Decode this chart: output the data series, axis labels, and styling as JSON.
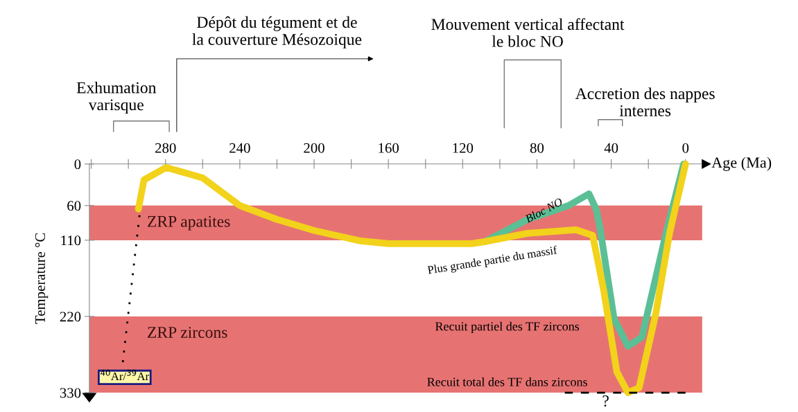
{
  "chart_data": {
    "type": "line",
    "xlabel": "Age (Ma)",
    "ylabel": "Temperature °C",
    "xlim": [
      321,
      -9
    ],
    "ylim": [
      330,
      0
    ],
    "xticks": [
      {
        "value": 320,
        "label": null
      },
      {
        "value": 300,
        "label": null
      },
      280,
      {
        "value": 260,
        "label": null
      },
      240,
      {
        "value": 220,
        "label": null
      },
      200,
      {
        "value": 180,
        "label": null
      },
      160,
      {
        "value": 140,
        "label": null
      },
      120,
      {
        "value": 100,
        "label": null
      },
      80,
      {
        "value": 60,
        "label": null
      },
      40,
      {
        "value": 20,
        "label": null
      },
      0
    ],
    "yticks": [
      0,
      60,
      110,
      220,
      330
    ],
    "grid": false,
    "legend": false,
    "marker": "none",
    "series": [
      {
        "name": "Plus grande partie du massif",
        "color": "#f2d21a",
        "line_style": "solid",
        "x": [
          294.6,
          291.6,
          279.6,
          260,
          240,
          220,
          200,
          175,
          160,
          115,
          108,
          85,
          59,
          50,
          44,
          37,
          31,
          25,
          16,
          8.6,
          0
        ],
        "values": [
          65,
          23,
          5,
          20,
          60,
          80,
          96,
          111,
          115,
          115,
          112,
          100,
          95,
          103,
          183,
          300,
          330,
          323,
          216,
          100,
          0
        ]
      },
      {
        "name": "Bloc NO",
        "color": "#5bbf95",
        "line_style": "solid",
        "x": [
          108,
          85,
          63,
          52,
          48,
          46,
          38.5,
          31,
          23.5,
          10.5,
          1
        ],
        "values": [
          112,
          80,
          60,
          43,
          66,
          93,
          223,
          263,
          250,
          100,
          0
        ]
      },
      {
        "color": "#000000",
        "line_style": "dotted",
        "x": [
          294,
          303
        ],
        "values": [
          74,
          286
        ]
      },
      {
        "color": "#000000",
        "line_style": "dashed",
        "x": [
          65,
          0
        ],
        "values": [
          330,
          330
        ]
      }
    ],
    "bands": [
      {
        "axis": "y",
        "from": 60,
        "to": 110,
        "label": "ZRP apatites",
        "color": "#e0504f"
      },
      {
        "axis": "y",
        "from": 220,
        "to": 330,
        "label": "ZRP zircons",
        "color": "#e0504f"
      }
    ],
    "annotations": [
      "Exhumation\nvarisque",
      "Dépôt du tégument et de\nla couverture Mésozoique",
      "Mouvement vertical affectant\nle bloc NO",
      "Accretion des nappes\ninternes",
      "Recuit partiel des TF zircons",
      "Recuit total des TF dans zircons",
      "$^{40}$Ar/$^{39}$Ar",
      "?"
    ]
  }
}
